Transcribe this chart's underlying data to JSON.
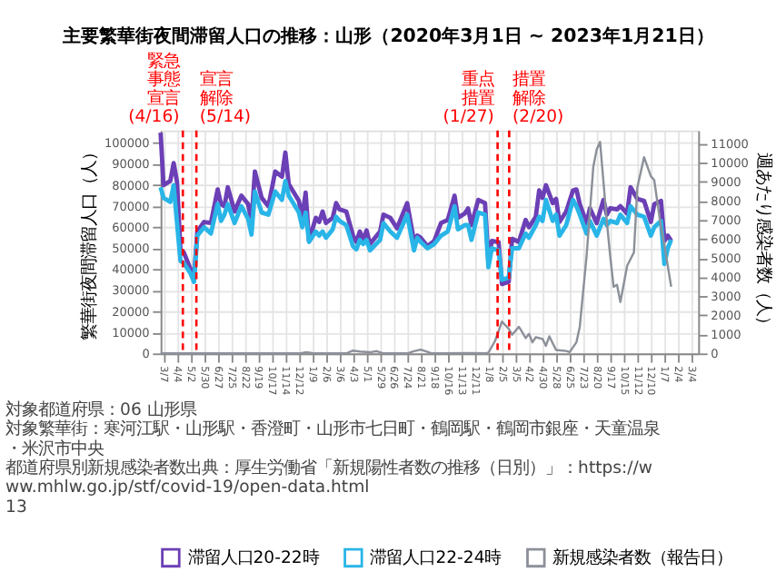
{
  "chart_data": {
    "type": "line",
    "title": "主要繁華街夜間滞留人口の推移：山形（2020年3月1日 ~ 2023年1月21日）",
    "ylabel": "繁華街夜間滞留人口（人）",
    "y2label": "週あたり感染者数（人）",
    "x": [
      "2020-03-01",
      "2020-03-07",
      "2020-03-21",
      "2020-03-28",
      "2020-04-04",
      "2020-04-11",
      "2020-04-18",
      "2020-05-02",
      "2020-05-09",
      "2020-05-16",
      "2020-05-30",
      "2020-06-13",
      "2020-06-27",
      "2020-07-04",
      "2020-07-11",
      "2020-07-18",
      "2020-08-01",
      "2020-08-15",
      "2020-08-29",
      "2020-09-05",
      "2020-09-12",
      "2020-09-26",
      "2020-10-10",
      "2020-10-24",
      "2020-11-07",
      "2020-11-14",
      "2020-11-21",
      "2020-12-12",
      "2020-12-19",
      "2020-12-26",
      "2021-01-02",
      "2021-01-16",
      "2021-01-23",
      "2021-01-30",
      "2021-02-06",
      "2021-02-20",
      "2021-02-27",
      "2021-03-06",
      "2021-03-20",
      "2021-04-03",
      "2021-04-10",
      "2021-04-17",
      "2021-04-24",
      "2021-05-01",
      "2021-05-08",
      "2021-05-29",
      "2021-06-05",
      "2021-06-19",
      "2021-07-03",
      "2021-07-24",
      "2021-08-07",
      "2021-08-14",
      "2021-08-21",
      "2021-09-04",
      "2021-09-18",
      "2021-10-02",
      "2021-10-16",
      "2021-10-30",
      "2021-11-06",
      "2021-11-20",
      "2021-11-27",
      "2021-12-04",
      "2021-12-18",
      "2022-01-01",
      "2022-01-08",
      "2022-01-15",
      "2022-01-29",
      "2022-02-05",
      "2022-02-19",
      "2022-02-26",
      "2022-03-12",
      "2022-03-26",
      "2022-04-02",
      "2022-04-16",
      "2022-04-23",
      "2022-04-30",
      "2022-05-07",
      "2022-05-21",
      "2022-05-28",
      "2022-06-04",
      "2022-06-18",
      "2022-07-02",
      "2022-07-09",
      "2022-07-16",
      "2022-07-30",
      "2022-08-06",
      "2022-08-20",
      "2022-09-03",
      "2022-09-10",
      "2022-09-17",
      "2022-10-01",
      "2022-10-08",
      "2022-10-22",
      "2022-10-29",
      "2022-11-12",
      "2022-11-26",
      "2022-12-10",
      "2022-12-17",
      "2022-12-31",
      "2023-01-07",
      "2023-01-14",
      "2023-01-21"
    ],
    "series": [
      {
        "name": "滞留人口20-22時",
        "color": "#6b3fb5",
        "values": [
          105000,
          80000,
          82000,
          90500,
          81500,
          49500,
          48000,
          40000,
          36000,
          58000,
          62500,
          62000,
          78000,
          71000,
          70000,
          79000,
          67500,
          75000,
          71000,
          62500,
          86500,
          74000,
          70000,
          86500,
          84000,
          95500,
          80500,
          72500,
          64500,
          76500,
          53500,
          64500,
          62500,
          67500,
          62000,
          64500,
          71500,
          68500,
          67500,
          56000,
          53000,
          58000,
          54000,
          58500,
          52000,
          58000,
          66000,
          64500,
          59500,
          71500,
          53500,
          56000,
          55000,
          51000,
          53500,
          62000,
          63500,
          75000,
          64500,
          66500,
          69000,
          61000,
          73000,
          71500,
          44000,
          53500,
          53000,
          33000,
          34000,
          54500,
          53000,
          63500,
          60000,
          65000,
          77500,
          74000,
          80000,
          71500,
          73500,
          62500,
          67500,
          77500,
          78000,
          71000,
          62000,
          69000,
          62000,
          73000,
          66000,
          69000,
          68500,
          70000,
          66500,
          79000,
          73500,
          72500,
          62500,
          71000,
          72500,
          53500,
          56000,
          53500
        ]
      },
      {
        "name": "滞留人口22-24時",
        "color": "#29b5e8",
        "values": [
          79000,
          74000,
          72000,
          80000,
          62000,
          44000,
          43000,
          38000,
          34000,
          56000,
          60000,
          57000,
          71000,
          63000,
          66000,
          71000,
          62000,
          70000,
          64000,
          56500,
          77000,
          67000,
          66000,
          77000,
          73000,
          82000,
          75000,
          67000,
          60000,
          67000,
          53000,
          58000,
          56000,
          58000,
          55000,
          59000,
          65000,
          63000,
          61000,
          51000,
          49500,
          54000,
          52000,
          54000,
          49000,
          54000,
          62000,
          58000,
          55000,
          66000,
          49000,
          55000,
          53000,
          50000,
          52000,
          56000,
          58000,
          70000,
          59000,
          61000,
          61000,
          54000,
          67000,
          66000,
          41000,
          50000,
          49000,
          35000,
          36000,
          50000,
          50000,
          57000,
          55000,
          61000,
          65000,
          63000,
          73000,
          63000,
          66000,
          56000,
          61000,
          73000,
          70000,
          66000,
          57000,
          63000,
          56000,
          64000,
          61000,
          63000,
          62000,
          66000,
          62000,
          70000,
          66000,
          65000,
          56000,
          60000,
          63000,
          42500,
          50000,
          54000
        ]
      },
      {
        "name": "新規感染者数（報告日）",
        "color": "#8c9099",
        "axis": "y2",
        "x": [
          "2020-03-01",
          "2020-12-12",
          "2020-12-26",
          "2021-01-09",
          "2021-02-06",
          "2021-03-20",
          "2021-04-03",
          "2021-04-17",
          "2021-05-08",
          "2021-05-22",
          "2021-06-05",
          "2021-07-24",
          "2021-08-07",
          "2021-08-21",
          "2021-09-11",
          "2021-10-02",
          "2021-12-11",
          "2022-01-01",
          "2022-01-08",
          "2022-01-22",
          "2022-02-05",
          "2022-02-19",
          "2022-02-26",
          "2022-03-12",
          "2022-03-19",
          "2022-03-26",
          "2022-04-02",
          "2022-04-09",
          "2022-04-16",
          "2022-04-30",
          "2022-05-07",
          "2022-05-14",
          "2022-05-28",
          "2022-06-18",
          "2022-06-25",
          "2022-07-09",
          "2022-07-16",
          "2022-07-30",
          "2022-08-13",
          "2022-08-20",
          "2022-08-27",
          "2022-09-10",
          "2022-09-17",
          "2022-09-24",
          "2022-10-01",
          "2022-10-08",
          "2022-10-22",
          "2022-11-05",
          "2022-11-12",
          "2022-11-26",
          "2022-12-10",
          "2022-12-17",
          "2022-12-31",
          "2023-01-07",
          "2023-01-21"
        ],
        "values": [
          0,
          0,
          60,
          20,
          0,
          0,
          150,
          100,
          60,
          120,
          0,
          0,
          120,
          200,
          20,
          0,
          20,
          0,
          40,
          670,
          1670,
          1300,
          980,
          1400,
          1120,
          800,
          1030,
          580,
          850,
          760,
          400,
          900,
          180,
          130,
          70,
          580,
          1400,
          5100,
          9800,
          10700,
          11100,
          6900,
          5100,
          3500,
          3600,
          2700,
          4600,
          5300,
          8700,
          10300,
          9300,
          9100,
          6600,
          5700,
          3500
        ]
      }
    ],
    "xlim": [
      "2020-03-01",
      "2023-03-18"
    ],
    "xticks": [
      {
        "value": "2020-03-07",
        "label": "3/7"
      },
      {
        "value": "2020-04-04",
        "label": "4/4"
      },
      {
        "value": "2020-05-02",
        "label": "5/2"
      },
      {
        "value": "2020-05-30",
        "label": "5/30"
      },
      {
        "value": "2020-06-27",
        "label": "6/27"
      },
      {
        "value": "2020-07-25",
        "label": "7/25"
      },
      {
        "value": "2020-08-22",
        "label": "8/22"
      },
      {
        "value": "2020-09-19",
        "label": "9/19"
      },
      {
        "value": "2020-10-17",
        "label": "10/17"
      },
      {
        "value": "2020-11-14",
        "label": "11/14"
      },
      {
        "value": "2020-12-12",
        "label": "12/12"
      },
      {
        "value": "2021-01-09",
        "label": "1/9"
      },
      {
        "value": "2021-02-06",
        "label": "2/6"
      },
      {
        "value": "2021-03-06",
        "label": "3/6"
      },
      {
        "value": "2021-04-03",
        "label": "4/3"
      },
      {
        "value": "2021-05-01",
        "label": "5/1"
      },
      {
        "value": "2021-05-29",
        "label": "5/29"
      },
      {
        "value": "2021-06-26",
        "label": "6/26"
      },
      {
        "value": "2021-07-24",
        "label": "7/24"
      },
      {
        "value": "2021-08-21",
        "label": "8/21"
      },
      {
        "value": "2021-09-18",
        "label": "9/18"
      },
      {
        "value": "2021-10-16",
        "label": "10/16"
      },
      {
        "value": "2021-11-13",
        "label": "11/13"
      },
      {
        "value": "2021-12-11",
        "label": "12/11"
      },
      {
        "value": "2022-01-08",
        "label": "1/8"
      },
      {
        "value": "2022-02-05",
        "label": "2/5"
      },
      {
        "value": "2022-03-05",
        "label": "3/5"
      },
      {
        "value": "2022-04-02",
        "label": "4/2"
      },
      {
        "value": "2022-04-30",
        "label": "4/30"
      },
      {
        "value": "2022-05-28",
        "label": "5/28"
      },
      {
        "value": "2022-06-25",
        "label": "6/25"
      },
      {
        "value": "2022-07-23",
        "label": "7/23"
      },
      {
        "value": "2022-08-20",
        "label": "8/20"
      },
      {
        "value": "2022-09-17",
        "label": "9/17"
      },
      {
        "value": "2022-10-15",
        "label": "10/15"
      },
      {
        "value": "2022-11-12",
        "label": "11/12"
      },
      {
        "value": "2022-12-10",
        "label": "12/10"
      },
      {
        "value": "2023-01-07",
        "label": "1/7"
      },
      {
        "value": "2023-02-04",
        "label": "2/4"
      },
      {
        "value": "2023-03-04",
        "label": "3/4"
      }
    ],
    "ylim": [
      0,
      106000
    ],
    "yticks": [
      0,
      10000,
      20000,
      30000,
      40000,
      50000,
      60000,
      70000,
      80000,
      90000,
      100000
    ],
    "y2lim": [
      0,
      11700
    ],
    "y2ticks": [
      0,
      1000,
      2000,
      3000,
      4000,
      5000,
      6000,
      7000,
      8000,
      9000,
      10000,
      11000
    ],
    "ref_lines": [
      {
        "axis": "x",
        "value": "2020-04-16",
        "label": "緊急事態宣言(4/16)",
        "color": "#ff0000",
        "line_style": "dashed"
      },
      {
        "axis": "x",
        "value": "2020-05-14",
        "label": "宣言解除(5/14)",
        "color": "#ff0000",
        "line_style": "dashed"
      },
      {
        "axis": "x",
        "value": "2022-01-27",
        "label": "重点措置(1/27)",
        "color": "#ff0000",
        "line_style": "dashed"
      },
      {
        "axis": "x",
        "value": "2022-02-20",
        "label": "措置解除(2/20)",
        "color": "#ff0000",
        "line_style": "dashed"
      }
    ],
    "grid": true,
    "legend": "bottom",
    "annotations": [
      "対象都道府県：06 山形県",
      "対象繁華街：寒河江駅・山形駅・香澄町・山形市七日町・鶴岡駅・鶴岡市銀座・天童温泉・米沢市中央",
      "都道府県別新規感染者数出典：厚生労働省「新規陽性者数の推移（日別）」：https://www.mhlw.go.jp/stf/covid-19/open-data.html",
      "13"
    ]
  }
}
